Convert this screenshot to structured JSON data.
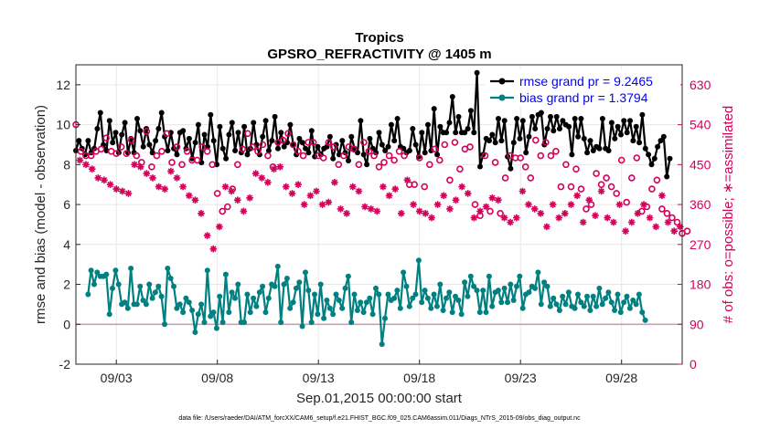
{
  "chart_data": {
    "type": "line",
    "title": "Tropics",
    "subtitle": "GPSRO_REFRACTIVITY @ 1405 m",
    "xlabel": "Sep.01,2015 00:00:00 start",
    "ylabel": "rmse and bias (model - observation)",
    "y2label": "# of obs: o=possible; ∗=assimilated",
    "xlim": [
      1.0,
      31.0
    ],
    "ylim": [
      -2,
      13
    ],
    "y2lim": [
      0,
      675
    ],
    "x_ticks": [
      3,
      8,
      13,
      18,
      23,
      28
    ],
    "x_tick_labels": [
      "09/03",
      "09/08",
      "09/13",
      "09/18",
      "09/23",
      "09/28"
    ],
    "y_ticks": [
      -2,
      0,
      2,
      4,
      6,
      8,
      10,
      12
    ],
    "y2_ticks": [
      0,
      90,
      180,
      270,
      360,
      450,
      540,
      630
    ],
    "zero_line": 0,
    "legend_location": "top-right",
    "footnote": "data file: /Users/raeder/DAI/ATM_forcXX/CAM6_setup/f.e21.FHIST_BGC.f09_025.CAM6assim.011/Diags_NTrS_2015-09/obs_diag_output.nc",
    "series": [
      {
        "name": "rmse grand pr = 9.2465",
        "axis": "left",
        "color": "#000000",
        "marker": "filled-circle",
        "values": [
          8.7,
          9.2,
          8.8,
          8.5,
          9.2,
          8.6,
          8.8,
          9.8,
          10.6,
          9.0,
          8.7,
          10.2,
          9.1,
          9.6,
          8.6,
          9.5,
          10.1,
          8.6,
          9.3,
          8.6,
          10.3,
          9.7,
          8.9,
          9.8,
          9.0,
          8.6,
          9.2,
          9.8,
          10.6,
          9.4,
          8.7,
          9.6,
          8.8,
          8.5,
          9.6,
          9.7,
          8.8,
          9.3,
          8.3,
          9.1,
          10.0,
          8.1,
          9.5,
          8.9,
          10.5,
          9.2,
          8.0,
          9.9,
          8.8,
          8.3,
          9.5,
          10.1,
          8.7,
          9.6,
          8.6,
          9.9,
          8.5,
          8.8,
          10.1,
          9.0,
          8.5,
          9.4,
          10.2,
          8.7,
          9.2,
          10.4,
          8.8,
          9.6,
          8.9,
          9.1,
          10.0,
          9.0,
          8.5,
          9.3,
          9.1,
          8.8,
          8.6,
          9.7,
          8.4,
          8.9,
          8.5,
          8.8,
          8.9,
          9.4,
          8.3,
          9.0,
          8.5,
          9.2,
          8.6,
          8.2,
          9.4,
          8.8,
          8.6,
          10.2,
          8.5,
          8.0,
          9.3,
          8.8,
          8.6,
          9.6,
          9.0,
          8.7,
          8.9,
          10.0,
          9.2,
          10.3,
          8.9,
          8.8,
          8.6,
          8.7,
          9.8,
          9.0,
          8.4,
          9.6,
          8.6,
          10.0,
          8.7,
          10.8,
          8.5,
          9.9,
          9.6,
          9.6,
          10.1,
          11.4,
          9.6,
          10.4,
          9.6,
          9.6,
          9.8,
          10.7,
          9.6,
          12.6,
          7.9,
          8.5,
          9.3,
          9.2,
          9.5,
          9.1,
          10.3,
          9.2,
          10.2,
          8.4,
          7.8,
          9.1,
          10.3,
          9.3,
          10.2,
          8.6,
          9.4,
          10.4,
          9.8,
          10.5,
          10.6,
          9.0,
          9.8,
          10.4,
          9.7,
          10.4,
          9.8,
          10.2,
          10.0,
          9.9,
          8.5,
          10.3,
          9.4,
          10.3,
          9.3,
          8.6,
          9.2,
          8.7,
          8.9,
          8.8,
          10.3,
          8.8,
          8.7,
          10.1,
          9.3,
          9.9,
          9.5,
          10.2,
          9.6,
          10.2,
          9.2,
          9.9,
          9.1,
          10.5,
          8.8,
          8.5,
          8.0,
          8.3,
          8.9,
          9.2,
          9.4,
          7.4,
          8.3
        ],
        "x_start": 1.0,
        "x_step": 0.1515
      },
      {
        "name": "bias grand pr = 1.3794",
        "axis": "left",
        "color": "#008080",
        "marker": "filled-circle",
        "values": [
          1.5,
          2.7,
          2.0,
          2.6,
          2.4,
          2.4,
          2.5,
          0.5,
          1.8,
          2.7,
          2.0,
          1.0,
          1.1,
          0.8,
          2.8,
          1.0,
          1.0,
          1.9,
          1.2,
          1.0,
          2.0,
          1.3,
          1.6,
          1.9,
          1.4,
          0.0,
          2.8,
          2.3,
          1.9,
          0.8,
          1.0,
          0.6,
          1.3,
          1.1,
          0.7,
          -0.4,
          0.5,
          1.0,
          0.1,
          2.7,
          0.4,
          0.6,
          -0.2,
          1.4,
          0.1,
          2.5,
          0.6,
          1.6,
          1.3,
          2.0,
          0.1,
          0.1,
          1.5,
          0.6,
          1.3,
          0.9,
          1.6,
          1.9,
          0.6,
          1.3,
          2.0,
          1.9,
          2.9,
          0.1,
          2.0,
          2.3,
          0.8,
          1.1,
          1.8,
          2.1,
          -0.1,
          2.6,
          1.7,
          0.1,
          1.5,
          0.5,
          2.0,
          0.3,
          1.2,
          0.8,
          0.5,
          1.5,
          1.2,
          0.8,
          1.8,
          2.4,
          0.1,
          1.5,
          0.7,
          1.1,
          0.6,
          1.1,
          1.3,
          0.5,
          1.8,
          1.5,
          -1.0,
          0.3,
          1.5,
          1.2,
          1.3,
          1.7,
          0.8,
          2.6,
          1.9,
          0.9,
          1.3,
          1.5,
          3.2,
          1.1,
          1.7,
          1.3,
          0.8,
          1.5,
          0.9,
          2.0,
          0.7,
          1.3,
          1.6,
          0.6,
          1.4,
          1.2,
          0.5,
          2.1,
          1.4,
          2.4,
          1.9,
          1.7,
          0.6,
          1.7,
          0.6,
          2.4,
          0.9,
          1.6,
          1.7,
          1.1,
          1.8,
          1.1,
          2.0,
          1.2,
          1.9,
          2.4,
          0.8,
          1.5,
          1.6,
          1.9,
          1.8,
          2.6,
          1.0,
          2.1,
          1.9,
          0.9,
          1.3,
          1.0,
          0.7,
          1.4,
          1.0,
          1.6,
          0.9,
          0.8,
          1.5,
          1.1,
          0.9,
          1.4,
          0.7,
          1.4,
          0.9,
          1.8,
          1.0,
          1.3,
          1.6,
          1.1,
          0.7,
          1.5,
          0.6,
          1.1,
          1.4,
          0.8,
          1.2,
          1.0,
          1.5,
          0.6,
          0.2
        ],
        "x_start": 1.6,
        "x_step": 0.1515
      },
      {
        "name": "possible obs",
        "axis": "right",
        "color": "#d6005a",
        "marker": "open-circle",
        "values": [
          540,
          480,
          470,
          470,
          480,
          485,
          510,
          480,
          475,
          490,
          475,
          505,
          470,
          455,
          525,
          445,
          470,
          480,
          520,
          455,
          490,
          450,
          480,
          460,
          460,
          490,
          480,
          450,
          385,
          345,
          355,
          395,
          450,
          485,
          520,
          490,
          480,
          495,
          470,
          445,
          500,
          505,
          520,
          495,
          480,
          470,
          500,
          500,
          470,
          465,
          500,
          490,
          450,
          470,
          490,
          485,
          450,
          500,
          480,
          470,
          445,
          455,
          470,
          460,
          480,
          470,
          405,
          405,
          465,
          400,
          450,
          485,
          460,
          495,
          415,
          500,
          440,
          485,
          490,
          360,
          335,
          470,
          345,
          455,
          340,
          420,
          470,
          465,
          465,
          445,
          420,
          505,
          470,
          500,
          470,
          480,
          400,
          450,
          400,
          440,
          395,
          350,
          360,
          430,
          405,
          420,
          400,
          385,
          460,
          365,
          420,
          465,
          345,
          355,
          395,
          415,
          350,
          340,
          330,
          320,
          295,
          300
        ],
        "x_start": 1.0,
        "x_step": 0.25
      },
      {
        "name": "assimilated obs",
        "axis": "right",
        "color": "#d6005a",
        "marker": "asterisk",
        "values": [
          460,
          450,
          440,
          420,
          415,
          405,
          395,
          390,
          385,
          450,
          445,
          430,
          420,
          400,
          395,
          435,
          420,
          400,
          380,
          370,
          340,
          290,
          260,
          310,
          400,
          390,
          370,
          345,
          375,
          430,
          420,
          410,
          440,
          445,
          400,
          385,
          405,
          360,
          380,
          390,
          360,
          365,
          410,
          350,
          340,
          400,
          390,
          355,
          350,
          345,
          400,
          380,
          395,
          340,
          415,
          360,
          345,
          340,
          330,
          360,
          380,
          350,
          370,
          400,
          385,
          330,
          345,
          355,
          375,
          370,
          330,
          320,
          330,
          390,
          360,
          350,
          340,
          310,
          360,
          330,
          340,
          360,
          380,
          320,
          370,
          335,
          390,
          330,
          320,
          360,
          300,
          320,
          340,
          360,
          330,
          310,
          380,
          320,
          300,
          310
        ],
        "x_start": 1.2,
        "x_step": 0.3
      }
    ]
  }
}
